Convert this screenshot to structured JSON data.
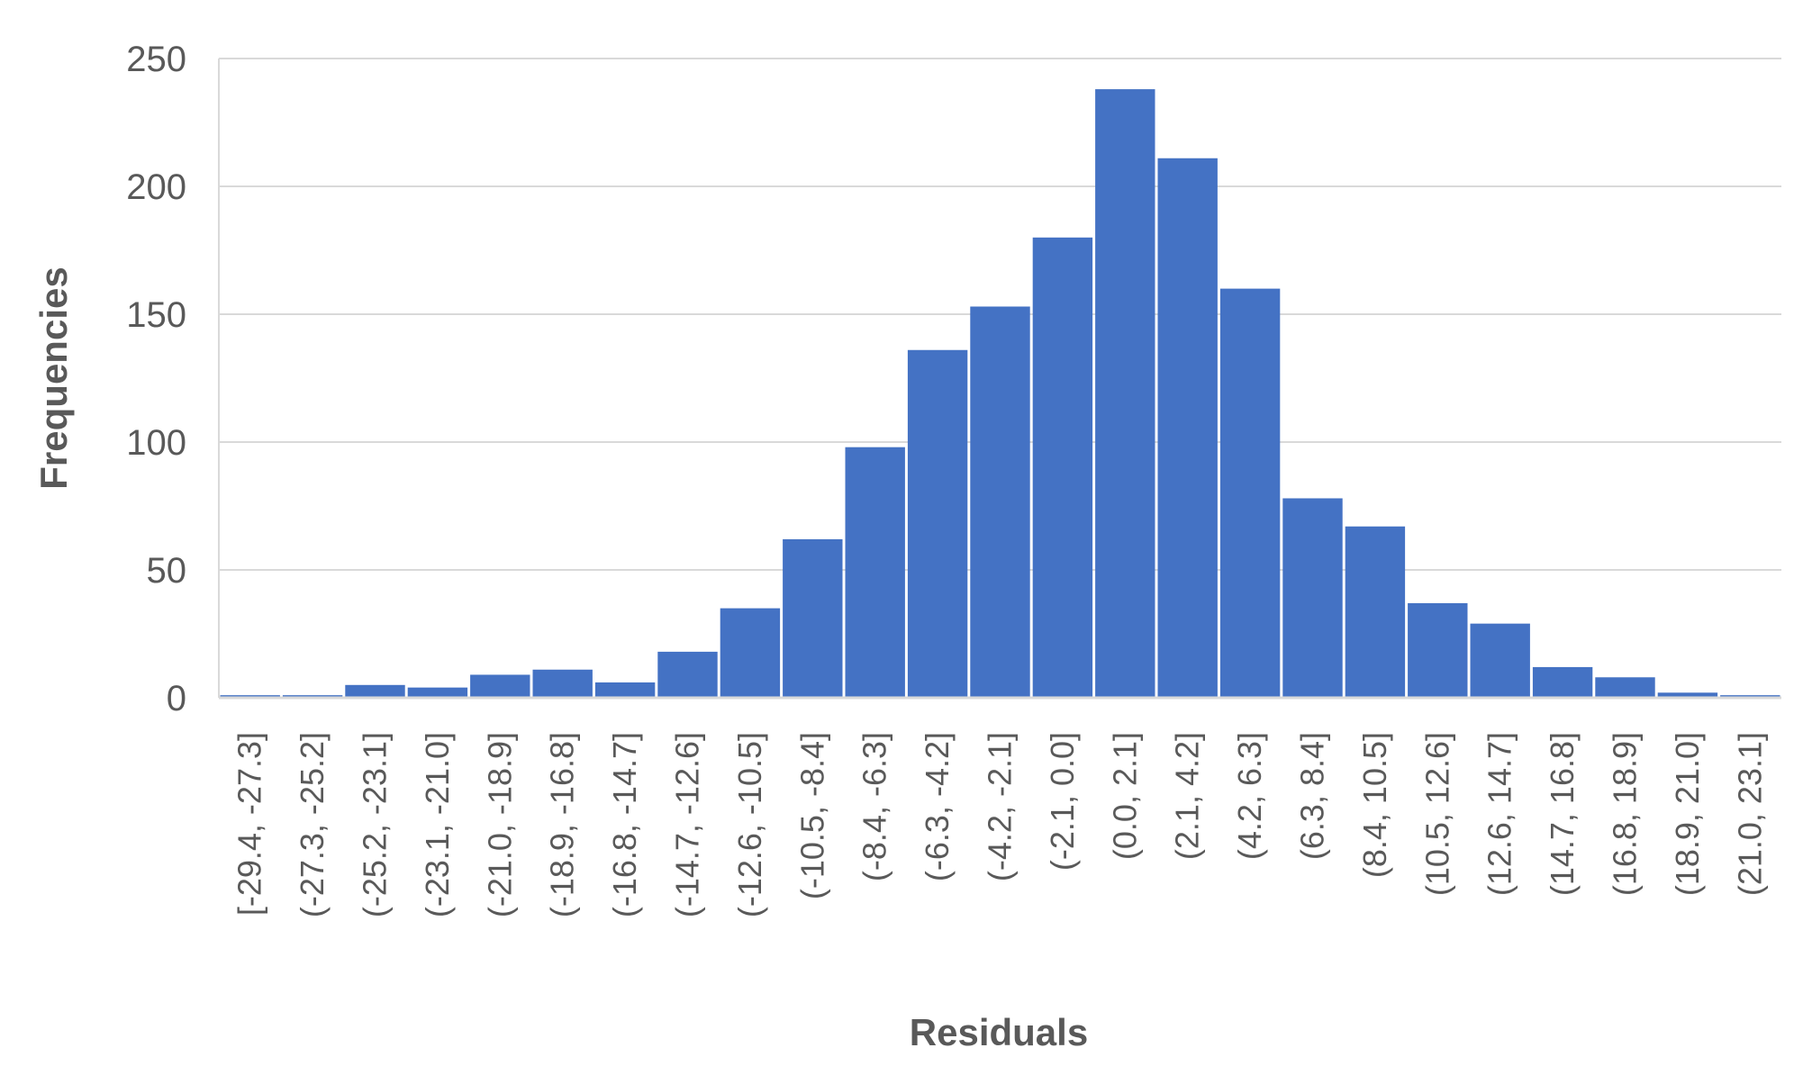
{
  "chart_data": {
    "type": "bar",
    "title": "",
    "xlabel": "Residuals",
    "ylabel": "Frequencies",
    "ylim": [
      0,
      250
    ],
    "yticks": [
      "0",
      "50",
      "100",
      "150",
      "200",
      "250"
    ],
    "grid": true,
    "legend": "none",
    "bar_color": "#4472c4",
    "categories": [
      "[-29.4, -27.3]",
      "(-27.3, -25.2]",
      "(-25.2, -23.1]",
      "(-23.1, -21.0]",
      "(-21.0, -18.9]",
      "(-18.9, -16.8]",
      "(-16.8, -14.7]",
      "(-14.7, -12.6]",
      "(-12.6, -10.5]",
      "(-10.5, -8.4]",
      "(-8.4, -6.3]",
      "(-6.3, -4.2]",
      "(-4.2, -2.1]",
      "(-2.1, 0.0]",
      "(0.0, 2.1]",
      "(2.1, 4.2]",
      "(4.2, 6.3]",
      "(6.3, 8.4]",
      "(8.4, 10.5]",
      "(10.5, 12.6]",
      "(12.6, 14.7]",
      "(14.7, 16.8]",
      "(16.8, 18.9]",
      "(18.9, 21.0]",
      "(21.0, 23.1]"
    ],
    "values": [
      1,
      1,
      5,
      4,
      9,
      11,
      6,
      18,
      35,
      62,
      98,
      136,
      153,
      180,
      238,
      211,
      160,
      78,
      67,
      37,
      29,
      12,
      8,
      2,
      1
    ]
  }
}
